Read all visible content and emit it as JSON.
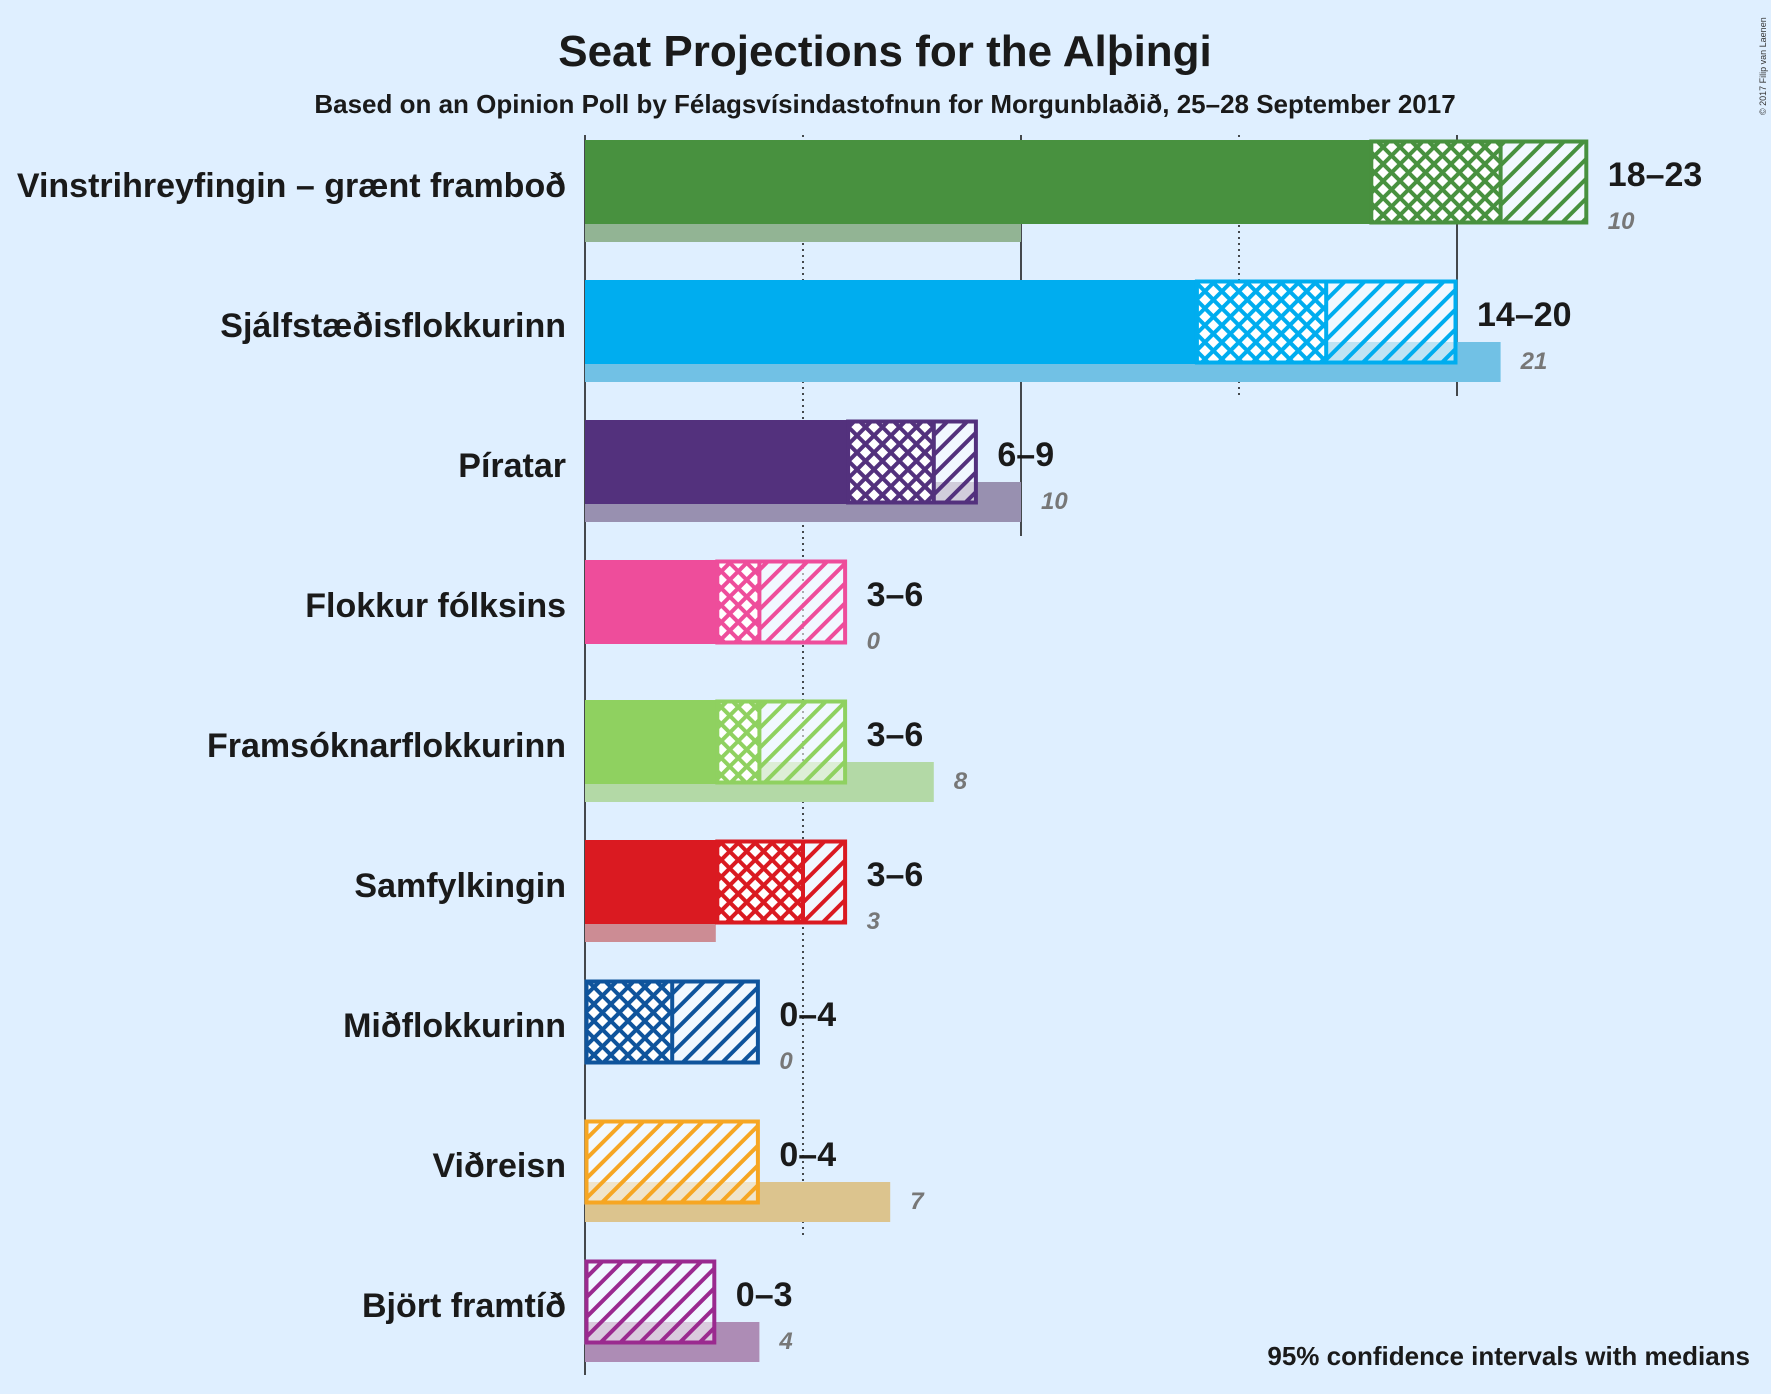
{
  "chart_data": {
    "type": "bar",
    "title": "Seat Projections for the Alþingi",
    "subtitle": "Based on an Opinion Poll by Félagsvísindastofnun for Morgunblaðið, 25–28 September 2017",
    "copyright": "© 2017 Filip van Laenen",
    "footnote": "95% confidence intervals with medians",
    "xlim": [
      0,
      23
    ],
    "gridlines_solid": [
      0,
      10,
      20
    ],
    "gridlines_dotted": [
      5,
      15
    ],
    "categories": [
      "Vinstrihreyfingin – grænt framboð",
      "Sjálfstæðisflokkurinn",
      "Píratar",
      "Flokkur fólksins",
      "Framsóknarflokkurinn",
      "Samfylkingin",
      "Miðflokkurinn",
      "Viðreisn",
      "Björt framtíð"
    ],
    "series": [
      {
        "party": "Vinstrihreyfingin – grænt framboð",
        "low": 18,
        "median": 21,
        "high": 23,
        "range_label": "18–23",
        "previous": 10,
        "previous_label": "10",
        "color": "#48913f",
        "prev_color": "#92b494"
      },
      {
        "party": "Sjálfstæðisflokkurinn",
        "low": 14,
        "median": 17,
        "high": 20,
        "range_label": "14–20",
        "previous": 21,
        "previous_label": "21",
        "color": "#00adef",
        "prev_color": "#71c1e5"
      },
      {
        "party": "Píratar",
        "low": 6,
        "median": 8,
        "high": 9,
        "range_label": "6–9",
        "previous": 10,
        "previous_label": "10",
        "color": "#53317d",
        "prev_color": "#9890b0"
      },
      {
        "party": "Flokkur fólksins",
        "low": 3,
        "median": 4,
        "high": 6,
        "range_label": "3–6",
        "previous": 0,
        "previous_label": "0",
        "color": "#ee4d9b",
        "prev_color": "#e59ac2"
      },
      {
        "party": "Framsóknarflokkurinn",
        "low": 3,
        "median": 4,
        "high": 6,
        "range_label": "3–6",
        "previous": 8,
        "previous_label": "8",
        "color": "#8fd160",
        "prev_color": "#b3d9a6"
      },
      {
        "party": "Samfylkingin",
        "low": 3,
        "median": 5,
        "high": 6,
        "range_label": "3–6",
        "previous": 3,
        "previous_label": "3",
        "color": "#da1a21",
        "prev_color": "#cc8c94"
      },
      {
        "party": "Miðflokkurinn",
        "low": 0,
        "median": 2,
        "high": 4,
        "range_label": "0–4",
        "previous": 0,
        "previous_label": "0",
        "color": "#0f549c",
        "prev_color": "#7d9cc4"
      },
      {
        "party": "Viðreisn",
        "low": 0,
        "median": 0,
        "high": 4,
        "range_label": "0–4",
        "previous": 7,
        "previous_label": "7",
        "color": "#f6a623",
        "prev_color": "#dcc48e"
      },
      {
        "party": "Björt framtíð",
        "low": 0,
        "median": 0,
        "high": 3,
        "range_label": "0–3",
        "previous": 4,
        "previous_label": "4",
        "color": "#9a2a8f",
        "prev_color": "#ad8cb5"
      }
    ]
  }
}
